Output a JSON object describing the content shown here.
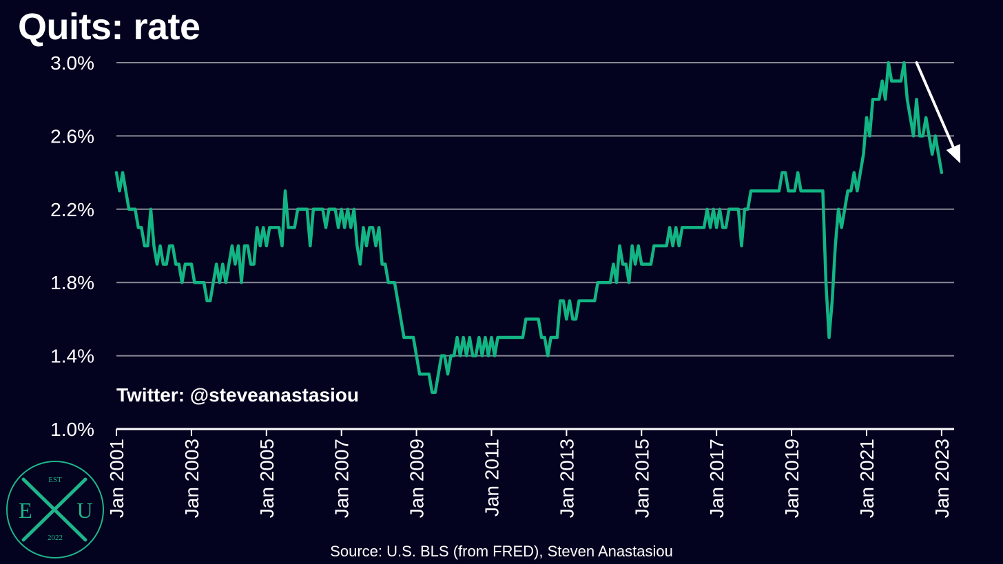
{
  "title": "Quits: rate",
  "source": "Source: U.S. BLS (from FRED), Steven Anastasiou",
  "watermark": "Twitter: @steveanastasiou",
  "logo": {
    "top": "EST",
    "left": "E",
    "center": "X",
    "right": "U",
    "bottom": "2022",
    "color": "#1fb58a"
  },
  "colors": {
    "background": "#03021f",
    "line": "#12b583",
    "grid": "#8a8a96",
    "arrow": "#ffffff"
  },
  "chart_data": {
    "type": "line",
    "title": "Quits: rate",
    "xlabel": "",
    "ylabel": "",
    "ylim": [
      1.0,
      3.0
    ],
    "xlim": [
      "2001-01",
      "2023-05"
    ],
    "y_ticks": [
      1.0,
      1.4,
      1.8,
      2.2,
      2.6,
      3.0
    ],
    "y_tick_labels": [
      "1.0%",
      "1.4%",
      "1.8%",
      "2.2%",
      "2.6%",
      "3.0%"
    ],
    "x_ticks": [
      "2001-01",
      "2003-01",
      "2005-01",
      "2007-01",
      "2009-01",
      "2011-01",
      "2013-01",
      "2015-01",
      "2017-01",
      "2019-01",
      "2021-01",
      "2023-01"
    ],
    "x_tick_labels": [
      "Jan 2001",
      "Jan 2003",
      "Jan 2005",
      "Jan 2007",
      "Jan 2009",
      "Jan 2011",
      "Jan 2013",
      "Jan 2015",
      "Jan 2017",
      "Jan 2019",
      "Jan 2021",
      "Jan 2023"
    ],
    "grid": true,
    "annotation": {
      "type": "arrow",
      "from": [
        "2022-05",
        3.0
      ],
      "to": [
        "2023-07",
        2.45
      ]
    },
    "series": [
      {
        "start": "2001-01",
        "frequency": "monthly",
        "values": [
          2.4,
          2.3,
          2.4,
          2.3,
          2.2,
          2.2,
          2.2,
          2.1,
          2.1,
          2.0,
          2.0,
          2.2,
          2.0,
          1.9,
          2.0,
          1.9,
          1.9,
          2.0,
          2.0,
          1.9,
          1.9,
          1.8,
          1.9,
          1.9,
          1.9,
          1.8,
          1.8,
          1.8,
          1.8,
          1.7,
          1.7,
          1.8,
          1.9,
          1.8,
          1.9,
          1.8,
          1.9,
          2.0,
          1.9,
          2.0,
          1.8,
          2.0,
          2.0,
          1.9,
          1.9,
          2.1,
          2.0,
          2.1,
          2.0,
          2.1,
          2.1,
          2.1,
          2.1,
          2.0,
          2.3,
          2.1,
          2.1,
          2.1,
          2.2,
          2.2,
          2.2,
          2.2,
          2.0,
          2.2,
          2.2,
          2.2,
          2.2,
          2.1,
          2.2,
          2.2,
          2.2,
          2.1,
          2.2,
          2.1,
          2.2,
          2.1,
          2.2,
          2.0,
          1.9,
          2.1,
          2.0,
          2.1,
          2.1,
          2.0,
          2.1,
          1.9,
          1.9,
          1.8,
          1.8,
          1.8,
          1.7,
          1.6,
          1.5,
          1.5,
          1.5,
          1.5,
          1.4,
          1.3,
          1.3,
          1.3,
          1.3,
          1.2,
          1.2,
          1.3,
          1.4,
          1.4,
          1.3,
          1.4,
          1.4,
          1.5,
          1.4,
          1.5,
          1.4,
          1.5,
          1.4,
          1.4,
          1.5,
          1.4,
          1.5,
          1.4,
          1.5,
          1.4,
          1.5,
          1.5,
          1.5,
          1.5,
          1.5,
          1.5,
          1.5,
          1.5,
          1.5,
          1.6,
          1.6,
          1.6,
          1.6,
          1.6,
          1.5,
          1.5,
          1.4,
          1.5,
          1.5,
          1.5,
          1.7,
          1.7,
          1.6,
          1.7,
          1.6,
          1.6,
          1.7,
          1.7,
          1.7,
          1.7,
          1.7,
          1.7,
          1.8,
          1.8,
          1.8,
          1.8,
          1.8,
          1.9,
          1.8,
          2.0,
          1.9,
          1.9,
          1.8,
          2.0,
          1.9,
          2.0,
          1.9,
          1.9,
          1.9,
          1.9,
          2.0,
          2.0,
          2.0,
          2.0,
          2.0,
          2.1,
          2.0,
          2.1,
          2.0,
          2.1,
          2.1,
          2.1,
          2.1,
          2.1,
          2.1,
          2.1,
          2.1,
          2.2,
          2.1,
          2.2,
          2.1,
          2.2,
          2.1,
          2.1,
          2.2,
          2.2,
          2.2,
          2.2,
          2.0,
          2.2,
          2.2,
          2.3,
          2.3,
          2.3,
          2.3,
          2.3,
          2.3,
          2.3,
          2.3,
          2.3,
          2.3,
          2.4,
          2.4,
          2.3,
          2.3,
          2.3,
          2.4,
          2.3,
          2.3,
          2.3,
          2.3,
          2.3,
          2.3,
          2.3,
          2.3,
          1.8,
          1.5,
          1.7,
          2.0,
          2.2,
          2.1,
          2.2,
          2.3,
          2.3,
          2.4,
          2.3,
          2.4,
          2.5,
          2.7,
          2.6,
          2.8,
          2.8,
          2.8,
          2.9,
          2.8,
          3.0,
          2.9,
          2.9,
          2.9,
          2.9,
          3.0,
          2.8,
          2.7,
          2.6,
          2.8,
          2.6,
          2.6,
          2.7,
          2.6,
          2.5,
          2.6,
          2.5,
          2.4
        ]
      }
    ]
  }
}
